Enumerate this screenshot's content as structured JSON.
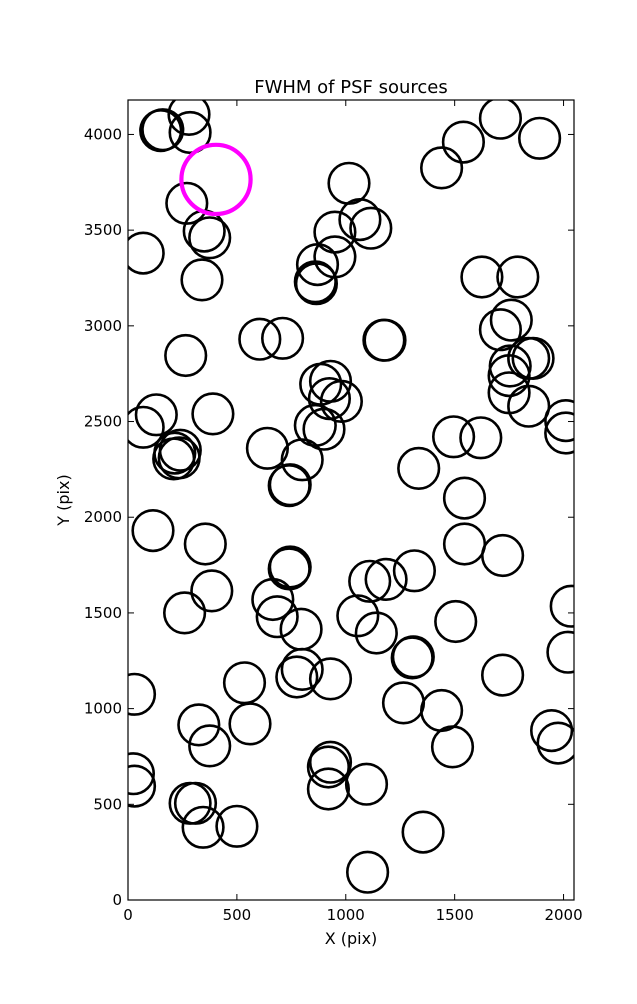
{
  "chart_data": {
    "type": "scatter",
    "title": "FWHM of PSF sources",
    "xlabel": "X (pix)",
    "ylabel": "Y (pix)",
    "xlim": [
      0,
      2048
    ],
    "ylim": [
      0,
      4180
    ],
    "xticks": [
      0,
      500,
      1000,
      1500,
      2000
    ],
    "yticks": [
      0,
      500,
      1000,
      1500,
      2000,
      2500,
      3000,
      3500,
      4000
    ],
    "grid": false,
    "marker": "open-circle",
    "marker_diameter_pix": 186,
    "highlight_diameter_pix": 318,
    "colors": {
      "sources": "#000000",
      "highlight": "#ff00ff"
    },
    "highlight": {
      "x": 404,
      "y": 3765
    },
    "points": [
      [
        160,
        4025
      ],
      [
        280,
        4105
      ],
      [
        285,
        4010
      ],
      [
        150,
        4020
      ],
      [
        1710,
        4085
      ],
      [
        1890,
        3980
      ],
      [
        1540,
        3960
      ],
      [
        1440,
        3825
      ],
      [
        270,
        3640
      ],
      [
        70,
        3380
      ],
      [
        350,
        3495
      ],
      [
        375,
        3460
      ],
      [
        340,
        3240
      ],
      [
        1015,
        3745
      ],
      [
        1065,
        3555
      ],
      [
        950,
        3490
      ],
      [
        1115,
        3510
      ],
      [
        870,
        3320
      ],
      [
        950,
        3360
      ],
      [
        860,
        3230
      ],
      [
        865,
        3220
      ],
      [
        1625,
        3255
      ],
      [
        1790,
        3255
      ],
      [
        605,
        2930
      ],
      [
        710,
        2935
      ],
      [
        1175,
        2925
      ],
      [
        1180,
        2925
      ],
      [
        1710,
        2980
      ],
      [
        1760,
        3030
      ],
      [
        1755,
        2790
      ],
      [
        1840,
        2830
      ],
      [
        1860,
        2830
      ],
      [
        1750,
        2740
      ],
      [
        1750,
        2650
      ],
      [
        1840,
        2580
      ],
      [
        265,
        2845
      ],
      [
        885,
        2695
      ],
      [
        930,
        2710
      ],
      [
        980,
        2605
      ],
      [
        925,
        2620
      ],
      [
        390,
        2540
      ],
      [
        130,
        2535
      ],
      [
        70,
        2470
      ],
      [
        215,
        2335
      ],
      [
        240,
        2350
      ],
      [
        235,
        2310
      ],
      [
        210,
        2305
      ],
      [
        640,
        2360
      ],
      [
        860,
        2480
      ],
      [
        900,
        2460
      ],
      [
        800,
        2300
      ],
      [
        740,
        2165
      ],
      [
        745,
        2170
      ],
      [
        1495,
        2420
      ],
      [
        1620,
        2415
      ],
      [
        2010,
        2505
      ],
      [
        2010,
        2440
      ],
      [
        1335,
        2255
      ],
      [
        1545,
        2100
      ],
      [
        115,
        1930
      ],
      [
        355,
        1860
      ],
      [
        385,
        1615
      ],
      [
        260,
        1500
      ],
      [
        745,
        1740
      ],
      [
        740,
        1730
      ],
      [
        1110,
        1665
      ],
      [
        1185,
        1675
      ],
      [
        1315,
        1720
      ],
      [
        1545,
        1860
      ],
      [
        1720,
        1800
      ],
      [
        665,
        1570
      ],
      [
        685,
        1480
      ],
      [
        795,
        1415
      ],
      [
        1055,
        1485
      ],
      [
        1140,
        1395
      ],
      [
        1505,
        1455
      ],
      [
        2035,
        1535
      ],
      [
        2020,
        1295
      ],
      [
        535,
        1135
      ],
      [
        800,
        1205
      ],
      [
        775,
        1165
      ],
      [
        930,
        1155
      ],
      [
        1305,
        1265
      ],
      [
        1310,
        1270
      ],
      [
        1720,
        1175
      ],
      [
        30,
        1075
      ],
      [
        560,
        920
      ],
      [
        325,
        915
      ],
      [
        375,
        805
      ],
      [
        1265,
        1030
      ],
      [
        1440,
        990
      ],
      [
        1490,
        800
      ],
      [
        1945,
        885
      ],
      [
        1975,
        820
      ],
      [
        930,
        720
      ],
      [
        920,
        695
      ],
      [
        920,
        580
      ],
      [
        25,
        660
      ],
      [
        30,
        595
      ],
      [
        1095,
        605
      ],
      [
        285,
        505
      ],
      [
        310,
        505
      ],
      [
        345,
        380
      ],
      [
        500,
        385
      ],
      [
        1100,
        145
      ],
      [
        1355,
        355
      ]
    ]
  }
}
